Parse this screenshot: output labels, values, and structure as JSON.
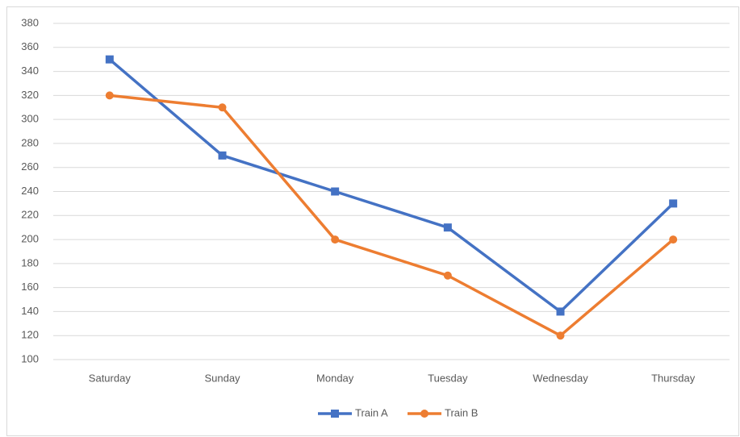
{
  "chart_data": {
    "type": "line",
    "categories": [
      "Saturday",
      "Sunday",
      "Monday",
      "Tuesday",
      "Wednesday",
      "Thursday"
    ],
    "series": [
      {
        "name": "Train A",
        "color": "#4472c4",
        "marker": "square",
        "values": [
          350,
          270,
          240,
          210,
          140,
          230
        ]
      },
      {
        "name": "Train B",
        "color": "#ed7d31",
        "marker": "circle",
        "values": [
          320,
          310,
          200,
          170,
          120,
          200
        ]
      }
    ],
    "ylim": [
      100,
      380
    ],
    "yticks": [
      100,
      120,
      140,
      160,
      180,
      200,
      220,
      240,
      260,
      280,
      300,
      320,
      340,
      360,
      380
    ],
    "grid": true,
    "legend": "bottom"
  }
}
